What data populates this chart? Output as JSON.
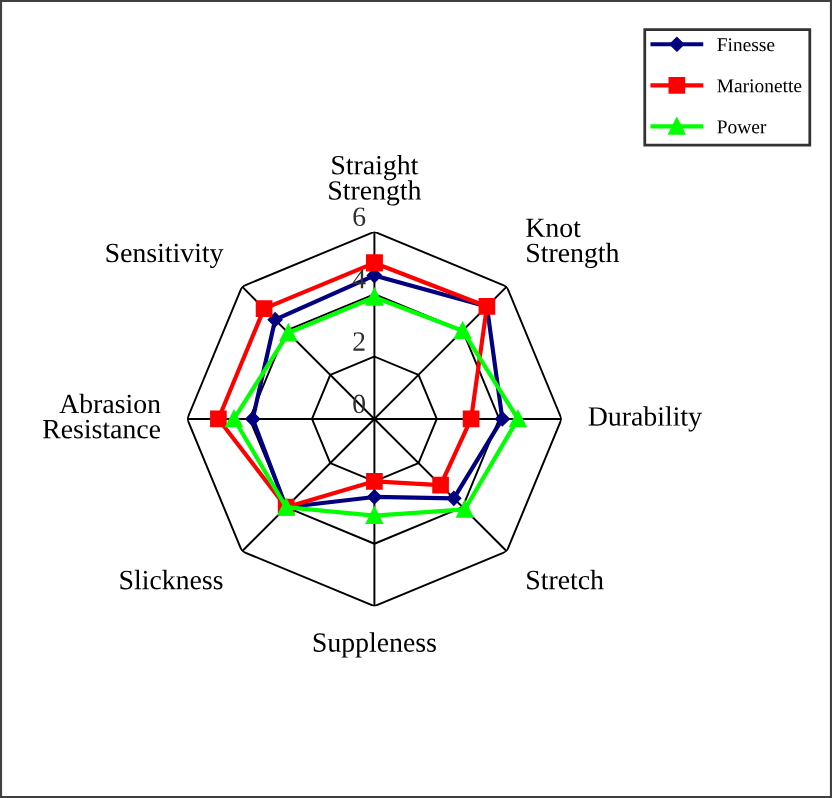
{
  "chart_data": {
    "type": "radar",
    "categories": [
      "Straight Strength",
      "Knot Strength",
      "Durability",
      "Stretch",
      "Suppleness",
      "Slickness",
      "Abrasion Resistance",
      "Sensitivity"
    ],
    "series": [
      {
        "name": "Finesse",
        "color": "#000080",
        "marker": "diamond",
        "values": [
          4.6,
          5.1,
          4.1,
          3.6,
          2.5,
          4.0,
          3.9,
          4.5
        ]
      },
      {
        "name": "Marionette",
        "color": "#ff0000",
        "marker": "square",
        "values": [
          5.0,
          5.1,
          3.1,
          3.0,
          2.0,
          4.0,
          5.0,
          5.0
        ]
      },
      {
        "name": "Power",
        "color": "#00ff00",
        "marker": "triangle",
        "values": [
          3.9,
          4.0,
          4.6,
          4.1,
          3.1,
          4.0,
          4.5,
          3.9
        ]
      }
    ],
    "ylim": [
      0,
      6
    ],
    "yticks": [
      0,
      2,
      4,
      6
    ],
    "grid": true,
    "legend": "top right"
  }
}
